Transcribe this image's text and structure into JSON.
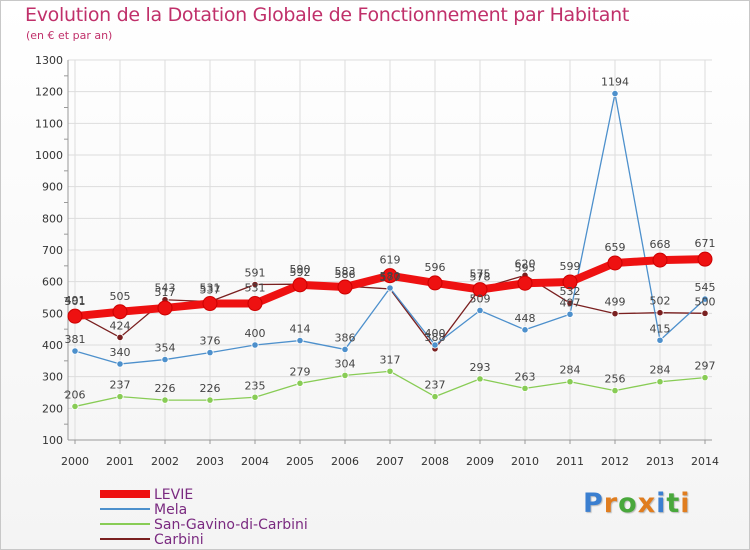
{
  "title": "Evolution de la Dotation Globale de Fonctionnement par Habitant",
  "subtitle": "(en € et par an)",
  "brand": {
    "letters": [
      "P",
      "r",
      "o",
      "x",
      "i",
      "t",
      "i"
    ],
    "colors": [
      "#3b7fd0",
      "#e07d1f",
      "#49a83c",
      "#e07d1f",
      "#3b7fd0",
      "#49a83c",
      "#e07d1f"
    ]
  },
  "chart_data": {
    "type": "line",
    "title": "Evolution de la Dotation Globale de Fonctionnement par Habitant",
    "subtitle": "(en € et par an)",
    "xlabel": "",
    "ylabel": "",
    "ylim": [
      100,
      1300
    ],
    "yticks": [
      100,
      200,
      300,
      400,
      500,
      600,
      700,
      800,
      900,
      1000,
      1100,
      1200,
      1300
    ],
    "x": [
      "2000",
      "2001",
      "2002",
      "2003",
      "2004",
      "2005",
      "2006",
      "2007",
      "2008",
      "2009",
      "2010",
      "2011",
      "2012",
      "2013",
      "2014"
    ],
    "grid": true,
    "legend_position": "bottom-left",
    "series": [
      {
        "name": "LEVIE",
        "color": "#ee1111",
        "values": [
          491,
          505,
          517,
          531,
          531,
          590,
          583,
          619,
          596,
          575,
          595,
          599,
          659,
          668,
          671
        ]
      },
      {
        "name": "Mela",
        "color": "#4d90cc",
        "values": [
          381,
          340,
          354,
          376,
          400,
          414,
          386,
          580,
          400,
          509,
          448,
          497,
          1194,
          415,
          545
        ]
      },
      {
        "name": "San-Gavino-di-Carbini",
        "color": "#88cc55",
        "values": [
          206,
          237,
          226,
          226,
          235,
          279,
          304,
          317,
          237,
          293,
          263,
          284,
          256,
          284,
          297
        ]
      },
      {
        "name": "Carbini",
        "color": "#7a2020",
        "values": [
          501,
          424,
          543,
          537,
          591,
          592,
          586,
          577,
          388,
          578,
          620,
          532,
          499,
          502,
          500
        ]
      }
    ]
  }
}
